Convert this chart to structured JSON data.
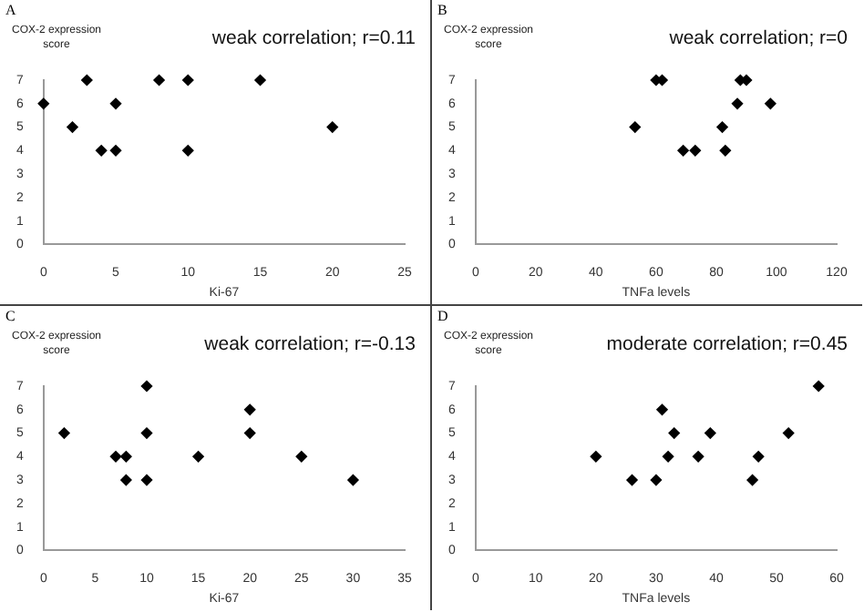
{
  "chart_data": [
    {
      "type": "scatter",
      "title": "A",
      "ylabel": "COX-2 expression score",
      "xlabel": "Ki-67",
      "annotations": [
        "weak correlation; r=0.11"
      ],
      "x": [
        0,
        2,
        3,
        4,
        5,
        5,
        8,
        10,
        10,
        15,
        20
      ],
      "values": [
        6,
        5,
        7,
        4,
        4,
        6,
        7,
        7,
        4,
        7,
        5
      ],
      "color": "#000000",
      "marker": "diamond",
      "grid": false,
      "xlim": [
        0,
        25
      ],
      "xticks": [
        0,
        5,
        10,
        15,
        20,
        25
      ],
      "ylim": [
        0,
        7
      ],
      "yticks": [
        0,
        1,
        2,
        3,
        4,
        5,
        6,
        7
      ]
    },
    {
      "type": "scatter",
      "title": "B",
      "ylabel": "COX-2 expression score",
      "xlabel": "TNFa levels",
      "annotations": [
        "weak correlation; r=0"
      ],
      "x": [
        53,
        60,
        62,
        69,
        73,
        82,
        83,
        87,
        88,
        90,
        98
      ],
      "values": [
        5,
        7,
        7,
        4,
        4,
        5,
        4,
        6,
        7,
        7,
        6
      ],
      "color": "#000000",
      "marker": "diamond",
      "grid": false,
      "xlim": [
        0,
        120
      ],
      "xticks": [
        0,
        20,
        40,
        60,
        80,
        100,
        120
      ],
      "ylim": [
        0,
        7
      ],
      "yticks": [
        0,
        1,
        2,
        3,
        4,
        5,
        6,
        7
      ]
    },
    {
      "type": "scatter",
      "title": "C",
      "ylabel": "COX-2 expression score",
      "xlabel": "Ki-67",
      "annotations": [
        "weak correlation; r=-0.13"
      ],
      "x": [
        2,
        7,
        8,
        8,
        10,
        10,
        10,
        15,
        20,
        20,
        25,
        30
      ],
      "values": [
        5,
        4,
        4,
        3,
        7,
        5,
        3,
        4,
        6,
        5,
        4,
        3
      ],
      "color": "#000000",
      "marker": "diamond",
      "grid": false,
      "xlim": [
        0,
        35
      ],
      "xticks": [
        0,
        5,
        10,
        15,
        20,
        25,
        30,
        35
      ],
      "ylim": [
        0,
        7
      ],
      "yticks": [
        0,
        1,
        2,
        3,
        4,
        5,
        6,
        7
      ]
    },
    {
      "type": "scatter",
      "title": "D",
      "ylabel": "COX-2 expression score",
      "xlabel": "TNFa levels",
      "annotations": [
        "moderate correlation; r=0.45"
      ],
      "x": [
        20,
        26,
        30,
        31,
        32,
        33,
        37,
        39,
        46,
        47,
        52,
        57
      ],
      "values": [
        4,
        3,
        3,
        6,
        4,
        5,
        4,
        5,
        3,
        4,
        5,
        7
      ],
      "color": "#000000",
      "marker": "diamond",
      "grid": false,
      "xlim": [
        0,
        60
      ],
      "xticks": [
        0,
        10,
        20,
        30,
        40,
        50,
        60
      ],
      "ylim": [
        0,
        7
      ],
      "yticks": [
        0,
        1,
        2,
        3,
        4,
        5,
        6,
        7
      ]
    }
  ]
}
